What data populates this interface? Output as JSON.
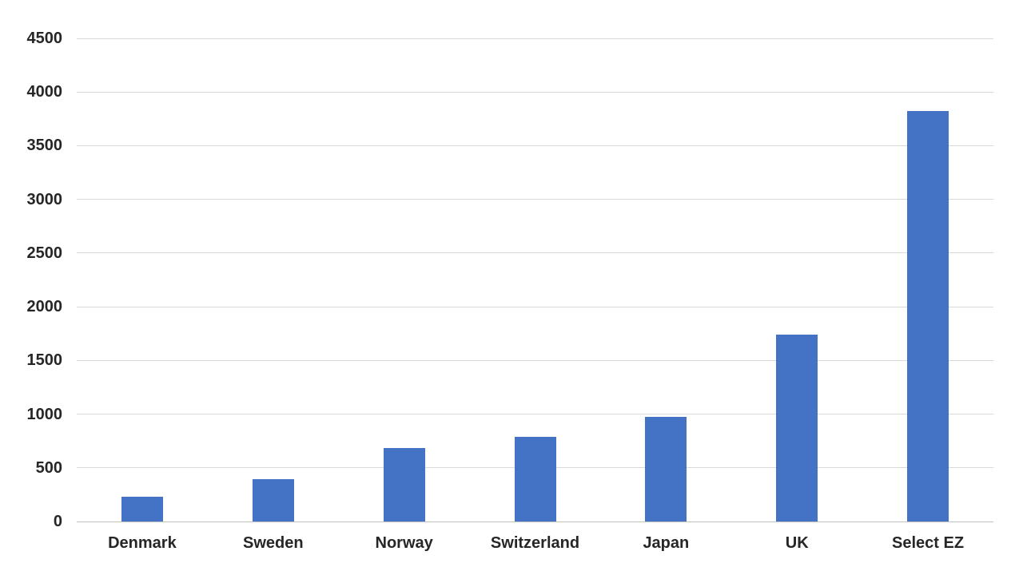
{
  "chart_data": {
    "type": "bar",
    "categories": [
      "Denmark",
      "Sweden",
      "Norway",
      "Switzerland",
      "Japan",
      "UK",
      "Select EZ"
    ],
    "values": [
      230,
      395,
      685,
      790,
      975,
      1740,
      3820
    ],
    "title": "",
    "xlabel": "",
    "ylabel": "",
    "ylim": [
      0,
      4500
    ],
    "ytick_step": 500,
    "ytick_labels": [
      "0",
      "500",
      "1000",
      "1500",
      "2000",
      "2500",
      "3000",
      "3500",
      "4000",
      "4500"
    ],
    "grid": true,
    "legend": false,
    "colors": {
      "bar": "#4472C4",
      "gridline": "#D9D9D9",
      "axis_line": "#BFBFBF",
      "tick_text": "#262626"
    }
  }
}
